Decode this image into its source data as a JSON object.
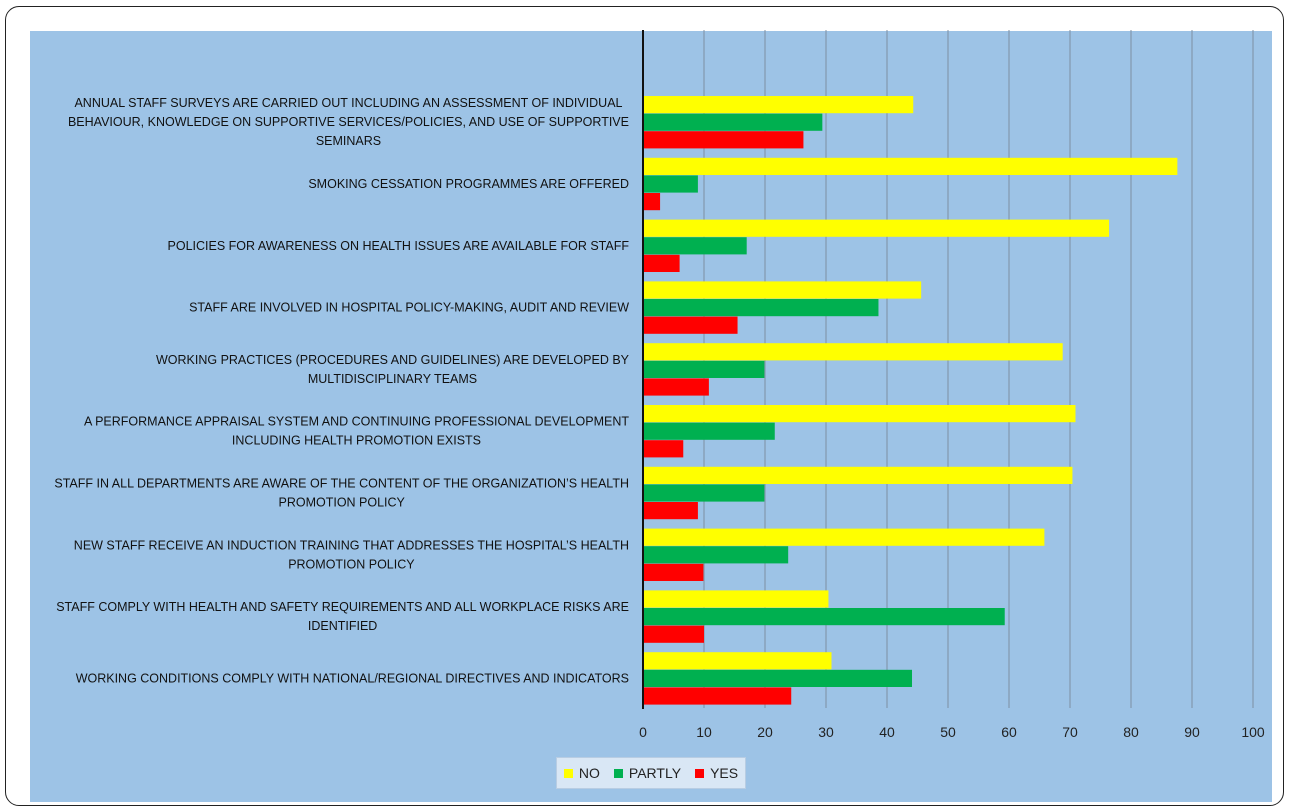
{
  "chart_data": {
    "type": "bar",
    "orientation": "horizontal",
    "categories": [
      [
        "ANNUAL STAFF SURVEYS ARE CARRIED OUT INCLUDING AN ASSESSMENT OF INDIVIDUAL",
        "BEHAVIOUR, KNOWLEDGE ON SUPPORTIVE SERVICES/POLICIES, AND USE OF SUPPORTIVE",
        "SEMINARS"
      ],
      [
        "SMOKING CESSATION PROGRAMMES ARE OFFERED"
      ],
      [
        "POLICIES FOR AWARENESS ON HEALTH ISSUES ARE AVAILABLE FOR STAFF"
      ],
      [
        "STAFF ARE INVOLVED IN HOSPITAL POLICY-MAKING, AUDIT AND REVIEW"
      ],
      [
        "WORKING PRACTICES (PROCEDURES AND GUIDELINES) ARE DEVELOPED BY",
        "MULTIDISCIPLINARY TEAMS"
      ],
      [
        "A PERFORMANCE APPRAISAL SYSTEM AND CONTINUING PROFESSIONAL DEVELOPMENT",
        "INCLUDING HEALTH PROMOTION EXISTS"
      ],
      [
        "STAFF IN ALL DEPARTMENTS ARE AWARE OF THE CONTENT OF THE ORGANIZATION’S HEALTH",
        "PROMOTION POLICY"
      ],
      [
        "NEW STAFF RECEIVE AN INDUCTION TRAINING THAT ADDRESSES THE HOSPITAL’S HEALTH",
        "PROMOTION POLICY"
      ],
      [
        "STAFF COMPLY WITH HEALTH AND SAFETY REQUIREMENTS  AND ALL WORKPLACE RISKS ARE",
        "IDENTIFIED"
      ],
      [
        "WORKING CONDITIONS COMPLY WITH NATIONAL/REGIONAL DIRECTIVES AND INDICATORS"
      ]
    ],
    "series": [
      {
        "name": "NO",
        "color": "#ffff00",
        "values": [
          44.3,
          87.6,
          76.4,
          45.6,
          68.8,
          70.9,
          70.4,
          65.8,
          30.4,
          30.9
        ]
      },
      {
        "name": "PARTLY",
        "color": "#00b050",
        "values": [
          29.4,
          9.0,
          17.0,
          38.6,
          19.9,
          21.6,
          19.9,
          23.8,
          59.3,
          44.1
        ]
      },
      {
        "name": "YES",
        "color": "#ff0000",
        "values": [
          26.3,
          2.8,
          6.0,
          15.5,
          10.8,
          6.6,
          9.0,
          9.9,
          10.0,
          24.3
        ]
      }
    ],
    "xlim": [
      0,
      100
    ],
    "xticks": [
      "0",
      "10",
      "20",
      "30",
      "40",
      "50",
      "60",
      "70",
      "80",
      "90",
      "100"
    ],
    "grid": "vertical",
    "legend_position": "bottom",
    "title": "",
    "xlabel": "",
    "ylabel": ""
  },
  "legend": {
    "items": [
      {
        "label": "NO",
        "color": "#ffff00"
      },
      {
        "label": "PARTLY",
        "color": "#00b050"
      },
      {
        "label": "YES",
        "color": "#ff0000"
      }
    ]
  },
  "colors": {
    "plot_background": "#9dc3e6",
    "gridline": "#7d8fa3",
    "axis": "#111111"
  }
}
